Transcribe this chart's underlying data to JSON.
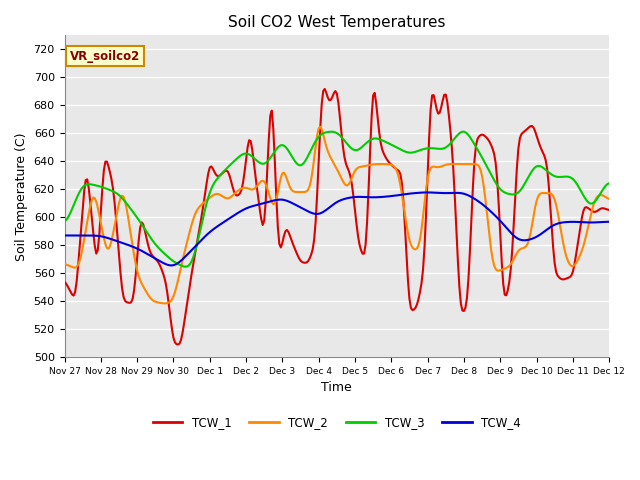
{
  "title": "Soil CO2 West Temperatures",
  "xlabel": "Time",
  "ylabel": "Soil Temperature (C)",
  "ylim": [
    500,
    730
  ],
  "yticks": [
    500,
    520,
    540,
    560,
    580,
    600,
    620,
    640,
    660,
    680,
    700,
    720
  ],
  "fig_bg": "#ffffff",
  "plot_bg": "#e8e8e8",
  "grid_color": "#ffffff",
  "legend_label": "VR_soilco2",
  "series_colors": {
    "TCW_1": "#dd0000",
    "TCW_2": "#ff8800",
    "TCW_3": "#00cc00",
    "TCW_4": "#0000dd"
  },
  "xtick_labels": [
    "Nov 27",
    "Nov 28",
    "Nov 29",
    "Nov 30",
    "Dec 1",
    "Dec 2",
    "Dec 3",
    "Dec 4",
    "Dec 5",
    "Dec 6",
    "Dec 7",
    "Dec 8",
    "Dec 9",
    "Dec 10",
    "Dec 11",
    "Dec 12"
  ],
  "n_points": 361,
  "figsize": [
    6.4,
    4.8
  ],
  "dpi": 100
}
